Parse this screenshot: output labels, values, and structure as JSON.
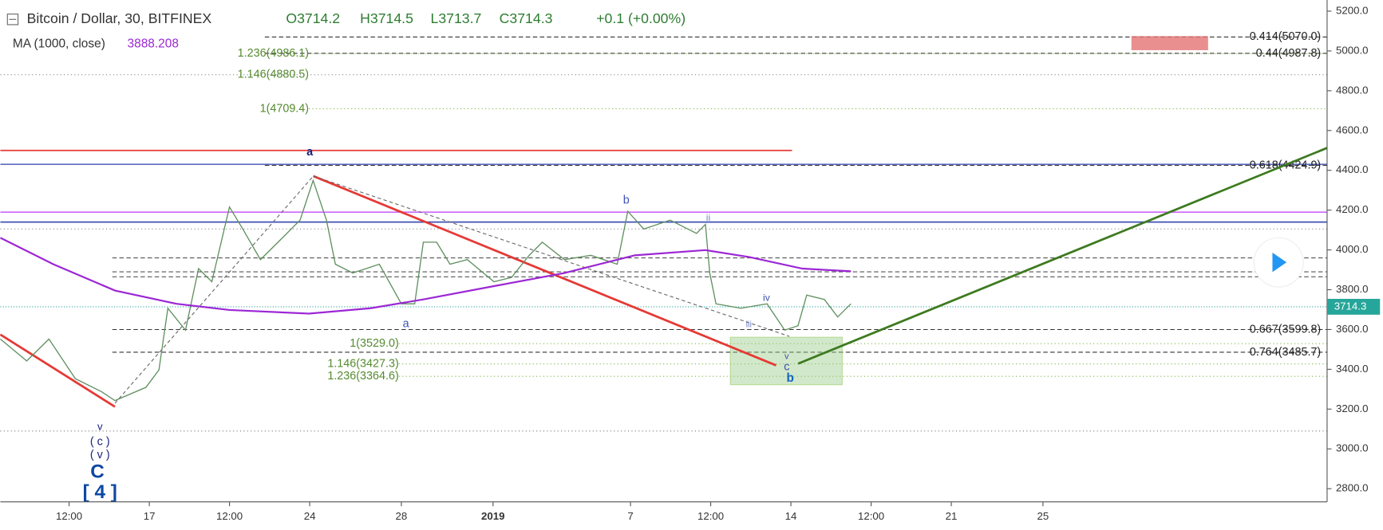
{
  "chart_data": {
    "type": "line",
    "title": "Bitcoin / Dollar, 30, BITFINEX",
    "ohlc": [
      "O3714.2",
      "H3714.5",
      "L3713.7",
      "C3714.3",
      "+0.1 (+0.00%)"
    ],
    "indicator": {
      "name": "MA (1000, close)",
      "value": 3888.208
    },
    "last_price": {
      "value": 3714.3,
      "label": "3714.3"
    },
    "xlim": [
      10.5,
      68.4
    ],
    "xticks": [
      {
        "value": 13.5,
        "label": "12:00"
      },
      17,
      {
        "value": 20.5,
        "label": "12:00"
      },
      24,
      28,
      {
        "value": 32,
        "label": "2019"
      },
      {
        "value": 38,
        "label": "7"
      },
      {
        "value": 41.5,
        "label": "12:00"
      },
      {
        "value": 45,
        "label": "14"
      },
      {
        "value": 48.5,
        "label": "12:00"
      },
      {
        "value": 52,
        "label": "21"
      },
      {
        "value": 56,
        "label": "25"
      }
    ],
    "ylim": [
      2734,
      5256
    ],
    "yticks": [
      {
        "value": 2800,
        "label": "2800.0"
      },
      {
        "value": 3000,
        "label": "3000.0"
      },
      {
        "value": 3200,
        "label": "3200.0"
      },
      {
        "value": 3400,
        "label": "3400.0"
      },
      {
        "value": 3600,
        "label": "3600.0"
      },
      {
        "value": 3800,
        "label": "3800.0"
      },
      {
        "value": 4000,
        "label": "4000.0"
      },
      {
        "value": 4200,
        "label": "4200.0"
      },
      {
        "value": 4400,
        "label": "4400.0"
      },
      {
        "value": 4600,
        "label": "4600.0"
      },
      {
        "value": 4800,
        "label": "4800.0"
      },
      {
        "value": 5000,
        "label": "5000.0"
      },
      {
        "value": 5200,
        "label": "5200.0"
      }
    ],
    "series": [
      {
        "name": "Price",
        "color": "#5f8f5f",
        "x": [
          10.5,
          11.65,
          12.62,
          13.77,
          14.92,
          15.5,
          16.85,
          17.42,
          17.81,
          18.58,
          19.15,
          19.73,
          20.5,
          21.08,
          21.85,
          22.81,
          23.58,
          24.15,
          24.73,
          25.12,
          25.88,
          27.04,
          28,
          28.58,
          28.96,
          29.54,
          30.12,
          30.88,
          32.04,
          32.81,
          33.58,
          34.15,
          35.12,
          36.27,
          37.42,
          37.88,
          38.58,
          39.73,
          40.88,
          41.27,
          41.46,
          41.73,
          42.81,
          43.96,
          44.73,
          45.31,
          45.69,
          46.46,
          47.04,
          47.62
        ],
        "values": [
          3552,
          3442,
          3552,
          3353,
          3287,
          3243,
          3309,
          3397,
          3707,
          3597,
          3906,
          3840,
          4216,
          4105,
          3951,
          4061,
          4150,
          4349,
          4150,
          3928,
          3884,
          3928,
          3729,
          3729,
          4039,
          4039,
          3928,
          3951,
          3840,
          3862,
          3973,
          4039,
          3951,
          3973,
          3928,
          4194,
          4105,
          4150,
          4083,
          4128,
          3884,
          3729,
          3707,
          3729,
          3597,
          3619,
          3773,
          3751,
          3663,
          3729
        ]
      },
      {
        "name": "MA",
        "color": "#9c27d4",
        "x": [
          10.5,
          12.81,
          15.5,
          18.19,
          20.5,
          23.96,
          26.65,
          28.96,
          32.04,
          35.12,
          38.19,
          41.27,
          43.19,
          45.5,
          47.62
        ],
        "values": [
          4061,
          3928,
          3796,
          3729,
          3698,
          3680,
          3707,
          3751,
          3818,
          3884,
          3973,
          3999,
          3964,
          3906,
          3893
        ]
      }
    ],
    "fib_right": [
      {
        "value": 5070,
        "label": "0.414(5070.0)"
      },
      {
        "value": 4987.8,
        "label": "0.44(4987.8)"
      },
      {
        "value": 4424.9,
        "label": "0.618(4424.9)"
      },
      {
        "value": 3599.8,
        "label": "0.667(3599.8)"
      },
      {
        "value": 3485.7,
        "label": "0.764(3485.7)"
      }
    ],
    "fib_left": [
      {
        "value": 4986.1,
        "label": "1.236(4986.1)"
      },
      {
        "value": 4880.5,
        "label": "1.146(4880.5)"
      },
      {
        "value": 4709.4,
        "label": "1(4709.4)"
      },
      {
        "value": 3529,
        "label": "1(3529.0)"
      },
      {
        "value": 3427.3,
        "label": "1.146(3427.3)"
      },
      {
        "value": 3364.6,
        "label": "1.236(3364.6)"
      }
    ],
    "hlines": [
      {
        "value": 4500,
        "color": "#e53935"
      },
      {
        "value": 4430,
        "color": "#5c6bc0"
      },
      {
        "value": 4190,
        "color": "#cc66ff"
      },
      {
        "value": 4140,
        "color": "#3f51b5"
      },
      {
        "value": 4105,
        "color": "#888888"
      },
      {
        "value": 3960,
        "color": "#555555"
      },
      {
        "value": 3890,
        "color": "#555555"
      },
      {
        "value": 3865,
        "color": "#555555"
      },
      {
        "value": 3090,
        "color": "#777777"
      }
    ],
    "waves": [
      "a",
      "b",
      "ii",
      "iv",
      "iii",
      "v",
      "c",
      "b",
      "a",
      "v",
      "( c )",
      "( v )",
      "C",
      "[ 4 ]"
    ]
  }
}
